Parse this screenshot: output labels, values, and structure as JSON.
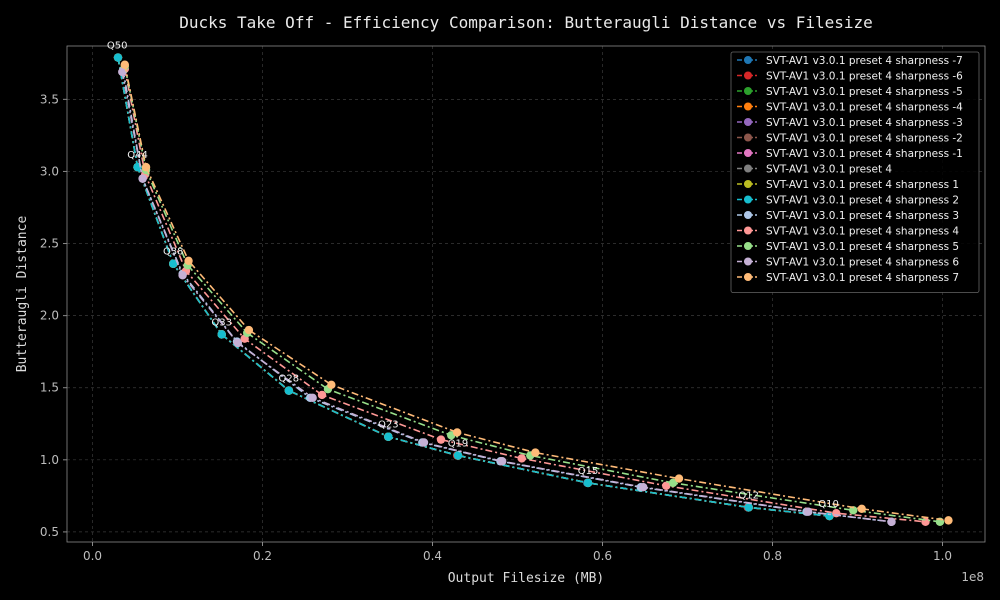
{
  "chart_data": {
    "type": "line",
    "title": "Ducks Take Off - Efficiency Comparison: Butteraugli Distance vs Filesize",
    "xlabel": "Output Filesize (MB)",
    "ylabel": "Butteraugli Distance",
    "x_scale_label": "1e8",
    "xlim": [
      -3000000,
      105000000
    ],
    "ylim": [
      0.43,
      3.87
    ],
    "x_ticks": [
      0,
      20000000,
      40000000,
      60000000,
      80000000,
      100000000
    ],
    "x_tick_labels": [
      "0.0",
      "0.2",
      "0.4",
      "0.6",
      "0.8",
      "1.0"
    ],
    "y_ticks": [
      0.5,
      1.0,
      1.5,
      2.0,
      2.5,
      3.0,
      3.5
    ],
    "y_tick_labels": [
      "0.5",
      "1.0",
      "1.5",
      "2.0",
      "2.5",
      "3.0",
      "3.5"
    ],
    "grid": true,
    "legend_position": "top-right",
    "quality_labels": [
      {
        "text": "Q50",
        "x": 2900000,
        "y": 3.79
      },
      {
        "text": "Q44",
        "x": 5300000,
        "y": 3.03
      },
      {
        "text": "Q38",
        "x": 9500000,
        "y": 2.36
      },
      {
        "text": "Q33",
        "x": 15200000,
        "y": 1.87
      },
      {
        "text": "Q28",
        "x": 23100000,
        "y": 1.48
      },
      {
        "text": "Q23",
        "x": 34800000,
        "y": 1.16
      },
      {
        "text": "Q19",
        "x": 43000000,
        "y": 1.03
      },
      {
        "text": "Q15",
        "x": 58300000,
        "y": 0.84
      },
      {
        "text": "Q12",
        "x": 77200000,
        "y": 0.67
      },
      {
        "text": "Q10",
        "x": 86600000,
        "y": 0.61
      }
    ],
    "series": [
      {
        "name": "SVT-AV1 v3.0.1 preset 4 sharpness -7",
        "color": "#1f77b4",
        "x": [
          3000000,
          5300000,
          9500000,
          15200000,
          23100000,
          34800000,
          42900000,
          58200000,
          77100000,
          86700000
        ],
        "y": [
          3.79,
          3.03,
          2.36,
          1.87,
          1.48,
          1.16,
          1.03,
          0.84,
          0.67,
          0.61
        ]
      },
      {
        "name": "SVT-AV1 v3.0.1 preset 4 sharpness -6",
        "color": "#d62728",
        "x": [
          3000000,
          5300000,
          9500000,
          15200000,
          23100000,
          34800000,
          42900000,
          58300000,
          77100000,
          86700000
        ],
        "y": [
          3.79,
          3.03,
          2.36,
          1.87,
          1.48,
          1.16,
          1.03,
          0.84,
          0.67,
          0.61
        ]
      },
      {
        "name": "SVT-AV1 v3.0.1 preset 4 sharpness -5",
        "color": "#2ca02c",
        "x": [
          3000000,
          5300000,
          9500000,
          15200000,
          23100000,
          34800000,
          43000000,
          58300000,
          77200000,
          86700000
        ],
        "y": [
          3.79,
          3.03,
          2.36,
          1.87,
          1.48,
          1.16,
          1.03,
          0.84,
          0.67,
          0.61
        ]
      },
      {
        "name": "SVT-AV1 v3.0.1 preset 4 sharpness -4",
        "color": "#ff7f0e",
        "x": [
          3000000,
          5300000,
          9500000,
          15200000,
          23100000,
          34800000,
          43000000,
          58300000,
          77200000,
          86700000
        ],
        "y": [
          3.79,
          3.03,
          2.36,
          1.87,
          1.48,
          1.16,
          1.03,
          0.84,
          0.67,
          0.61
        ]
      },
      {
        "name": "SVT-AV1 v3.0.1 preset 4 sharpness -3",
        "color": "#9467bd",
        "x": [
          3000000,
          5300000,
          9500000,
          15200000,
          23100000,
          34800000,
          43000000,
          58300000,
          77200000,
          86700000
        ],
        "y": [
          3.79,
          3.03,
          2.36,
          1.87,
          1.48,
          1.16,
          1.03,
          0.84,
          0.67,
          0.61
        ]
      },
      {
        "name": "SVT-AV1 v3.0.1 preset 4 sharpness -2",
        "color": "#8c564b",
        "x": [
          3000000,
          5300000,
          9500000,
          15200000,
          23100000,
          34800000,
          43000000,
          58300000,
          77200000,
          86700000
        ],
        "y": [
          3.79,
          3.03,
          2.36,
          1.87,
          1.48,
          1.16,
          1.03,
          0.84,
          0.67,
          0.61
        ]
      },
      {
        "name": "SVT-AV1 v3.0.1 preset 4 sharpness -1",
        "color": "#e377c2",
        "x": [
          3000000,
          5300000,
          9500000,
          15200000,
          23100000,
          34800000,
          43000000,
          58300000,
          77200000,
          86700000
        ],
        "y": [
          3.79,
          3.03,
          2.36,
          1.87,
          1.48,
          1.16,
          1.03,
          0.84,
          0.67,
          0.61
        ]
      },
      {
        "name": "SVT-AV1 v3.0.1 preset 4",
        "color": "#7f7f7f",
        "x": [
          3000000,
          5300000,
          9500000,
          15200000,
          23100000,
          34800000,
          43000000,
          58300000,
          77200000,
          86700000
        ],
        "y": [
          3.79,
          3.03,
          2.36,
          1.87,
          1.48,
          1.16,
          1.03,
          0.84,
          0.67,
          0.61
        ]
      },
      {
        "name": "SVT-AV1 v3.0.1 preset 4 sharpness 1",
        "color": "#bcbd22",
        "x": [
          3000000,
          5300000,
          9500000,
          15200000,
          23100000,
          34800000,
          43000000,
          58300000,
          77200000,
          86700000
        ],
        "y": [
          3.79,
          3.03,
          2.36,
          1.87,
          1.48,
          1.16,
          1.03,
          0.84,
          0.67,
          0.61
        ]
      },
      {
        "name": "SVT-AV1 v3.0.1 preset 4 sharpness 2",
        "color": "#17becf",
        "x": [
          3000000,
          5300000,
          9500000,
          15200000,
          23100000,
          34800000,
          43000000,
          58300000,
          77200000,
          86700000
        ],
        "y": [
          3.79,
          3.03,
          2.36,
          1.87,
          1.48,
          1.16,
          1.03,
          0.84,
          0.67,
          0.61
        ]
      },
      {
        "name": "SVT-AV1 v3.0.1 preset 4 sharpness 3",
        "color": "#aec7e8",
        "x": [
          3600000,
          5900000,
          10600000,
          17000000,
          25600000,
          38800000,
          48000000,
          64500000,
          84000000,
          94000000
        ],
        "y": [
          3.7,
          2.95,
          2.29,
          1.82,
          1.43,
          1.12,
          0.99,
          0.81,
          0.64,
          0.57
        ]
      },
      {
        "name": "SVT-AV1 v3.0.1 preset 4 sharpness 4",
        "color": "#ff9896",
        "x": [
          3800000,
          6200000,
          11000000,
          17900000,
          27000000,
          41000000,
          50500000,
          67500000,
          87500000,
          98000000
        ],
        "y": [
          3.71,
          2.98,
          2.31,
          1.84,
          1.45,
          1.14,
          1.01,
          0.82,
          0.63,
          0.57
        ]
      },
      {
        "name": "SVT-AV1 v3.0.1 preset 4 sharpness 5",
        "color": "#98df8a",
        "x": [
          3800000,
          6300000,
          11200000,
          18200000,
          27700000,
          42200000,
          51500000,
          68300000,
          89500000,
          99700000
        ],
        "y": [
          3.73,
          3.01,
          2.35,
          1.88,
          1.49,
          1.17,
          1.03,
          0.84,
          0.65,
          0.57
        ]
      },
      {
        "name": "SVT-AV1 v3.0.1 preset 4 sharpness 6",
        "color": "#c5b0d5",
        "x": [
          3500000,
          5900000,
          10600000,
          17100000,
          25900000,
          39000000,
          48200000,
          64800000,
          84200000,
          94000000
        ],
        "y": [
          3.69,
          2.95,
          2.28,
          1.81,
          1.43,
          1.12,
          0.99,
          0.81,
          0.64,
          0.57
        ]
      },
      {
        "name": "SVT-AV1 v3.0.1 preset 4 sharpness 7",
        "color": "#ffbb78",
        "x": [
          3800000,
          6300000,
          11300000,
          18400000,
          28100000,
          42900000,
          52100000,
          69000000,
          90500000,
          100700000
        ],
        "y": [
          3.74,
          3.03,
          2.38,
          1.9,
          1.52,
          1.19,
          1.05,
          0.87,
          0.66,
          0.58
        ]
      }
    ]
  }
}
